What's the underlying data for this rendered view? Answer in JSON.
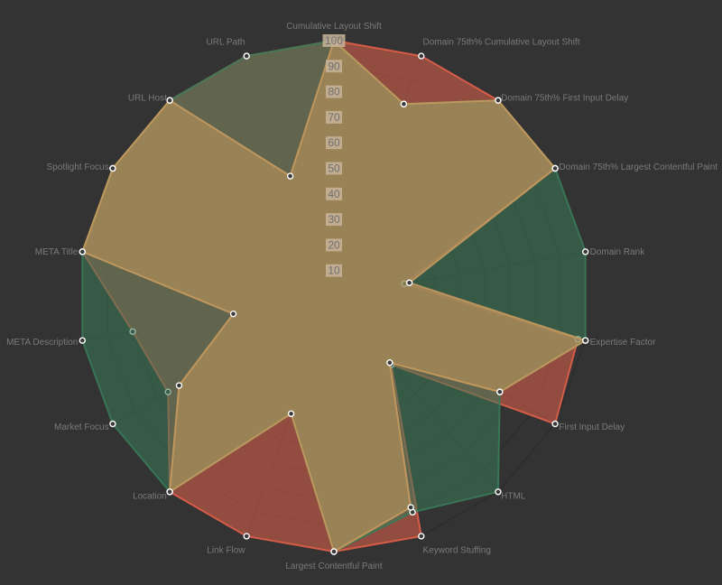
{
  "chart_data": {
    "type": "radar",
    "axes": [
      "Cumulative Layout Shift",
      "Domain 75th% Cumulative Layout Shift",
      "Domain 75th% First Input Delay",
      "Domain 75th% Largest Contentful Paint",
      "Domain Rank",
      "Expertise Factor",
      "First Input Delay",
      "HTML",
      "Keyword Stuffing",
      "Largest Contentful Paint",
      "Link Flow",
      "Location",
      "Market Focus",
      "META Description",
      "META Title",
      "Spotlight Focus",
      "URL Host",
      "URL Path"
    ],
    "ticks": [
      "10",
      "20",
      "30",
      "40",
      "50",
      "60",
      "70",
      "80",
      "90",
      "100"
    ],
    "rmin": 0,
    "rmax": 100,
    "series": [
      {
        "color": "#e0604a",
        "values": [
          100,
          100,
          100,
          100,
          28,
          97,
          100,
          35,
          100,
          100,
          100,
          100,
          75,
          80,
          100,
          100,
          100,
          100
        ]
      },
      {
        "color": "#3a7a58",
        "values": [
          100,
          80,
          100,
          100,
          100,
          100,
          75,
          100,
          90,
          100,
          49,
          100,
          100,
          100,
          100,
          100,
          100,
          100
        ]
      },
      {
        "color": "#c79a5e",
        "values": [
          100,
          80,
          100,
          100,
          30,
          100,
          75,
          34,
          88,
          100,
          49,
          100,
          70,
          40,
          100,
          100,
          100,
          50
        ]
      }
    ]
  }
}
